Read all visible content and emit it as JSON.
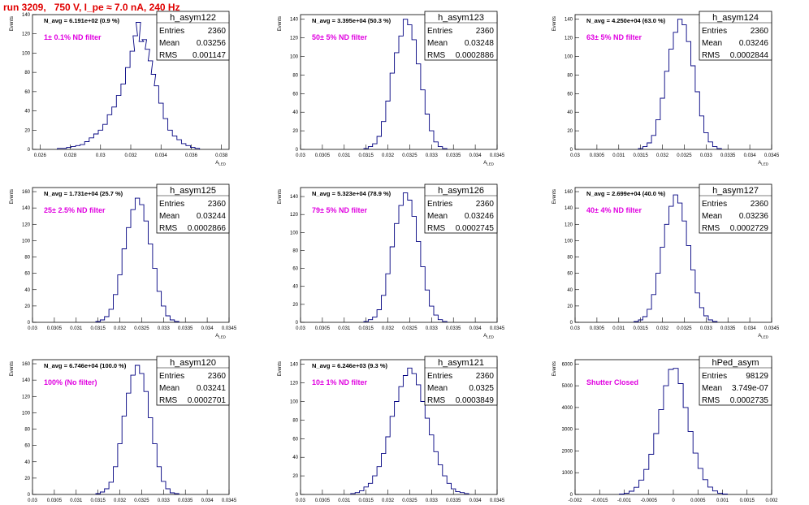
{
  "page_title": "run 3209,   750 V, I_pe ≈ 7.0 nA, 240 Hz",
  "chart_data": [
    {
      "type": "histogram",
      "stat_name": "h_asym122",
      "entries": "2360",
      "mean": "0.03256",
      "rms": "0.001147",
      "annotation": "N_avg = 6.191e+02 (0.9 %)",
      "filter_label": "1± 0.1% ND filter",
      "ylabel": "Events",
      "xlabel": "A_LED",
      "xlim": [
        0.0255,
        0.0385
      ],
      "ylim": [
        0,
        140
      ],
      "xticks": [
        0.026,
        0.028,
        0.03,
        0.032,
        0.034,
        0.036,
        0.038
      ],
      "xtick_labels": [
        "0.026",
        "0.028",
        "0.03",
        "0.032",
        "0.034",
        "0.036",
        "0.038"
      ],
      "yticks": [
        0,
        20,
        40,
        60,
        80,
        100,
        120,
        140
      ],
      "ytick_labels": [
        "0",
        "20",
        "40",
        "60",
        "80",
        "100",
        "120",
        "140"
      ],
      "x": [
        0.0273,
        0.0276,
        0.0279,
        0.0282,
        0.0285,
        0.0288,
        0.0291,
        0.0294,
        0.0297,
        0.03,
        0.0303,
        0.0306,
        0.0309,
        0.0312,
        0.0315,
        0.0318,
        0.0321,
        0.0323,
        0.0325,
        0.0327,
        0.0329,
        0.0331,
        0.0333,
        0.0335,
        0.0337,
        0.034,
        0.0343,
        0.0346,
        0.0349,
        0.0352,
        0.0355,
        0.0358,
        0.0361,
        0.0364
      ],
      "values": [
        1,
        1,
        2,
        3,
        4,
        5,
        8,
        12,
        16,
        20,
        26,
        36,
        44,
        56,
        68,
        85,
        102,
        118,
        132,
        112,
        114,
        104,
        92,
        78,
        66,
        48,
        32,
        20,
        14,
        10,
        6,
        4,
        2,
        1
      ]
    },
    {
      "type": "histogram",
      "stat_name": "h_asym123",
      "entries": "2360",
      "mean": "0.03248",
      "rms": "0.0002886",
      "annotation": "N_avg = 3.395e+04 (50.3 %)",
      "filter_label": "50± 5% ND filter",
      "ylabel": "Events",
      "xlabel": "A_LED",
      "xlim": [
        0.03,
        0.0345
      ],
      "ylim": [
        0,
        145
      ],
      "xticks": [
        0.03,
        0.0305,
        0.031,
        0.0315,
        0.032,
        0.0325,
        0.033,
        0.0335,
        0.034,
        0.0345
      ],
      "xtick_labels": [
        "0.03",
        "0.0305",
        "0.031",
        "0.0315",
        "0.032",
        "0.0325",
        "0.033",
        "0.0335",
        "0.034",
        "0.0345"
      ],
      "yticks": [
        0,
        20,
        40,
        60,
        80,
        100,
        120,
        140
      ],
      "ytick_labels": [
        "0",
        "20",
        "40",
        "60",
        "80",
        "100",
        "120",
        "140"
      ],
      "x": [
        0.0315,
        0.0316,
        0.0317,
        0.0318,
        0.0319,
        0.032,
        0.0321,
        0.0322,
        0.0323,
        0.0324,
        0.0325,
        0.0326,
        0.0327,
        0.0328,
        0.0329,
        0.033,
        0.0331,
        0.0332,
        0.0333
      ],
      "values": [
        1,
        3,
        6,
        14,
        30,
        52,
        82,
        104,
        122,
        140,
        134,
        118,
        92,
        64,
        38,
        20,
        8,
        3,
        1
      ]
    },
    {
      "type": "histogram",
      "stat_name": "h_asym124",
      "entries": "2360",
      "mean": "0.03246",
      "rms": "0.0002844",
      "annotation": "N_avg = 4.250e+04 (63.0 %)",
      "filter_label": "63± 5% ND filter",
      "ylabel": "Events",
      "xlabel": "A_LED",
      "xlim": [
        0.03,
        0.0345
      ],
      "ylim": [
        0,
        145
      ],
      "xticks": [
        0.03,
        0.0305,
        0.031,
        0.0315,
        0.032,
        0.0325,
        0.033,
        0.0335,
        0.034,
        0.0345
      ],
      "xtick_labels": [
        "0.03",
        "0.0305",
        "0.031",
        "0.0315",
        "0.032",
        "0.0325",
        "0.033",
        "0.0335",
        "0.034",
        "0.0345"
      ],
      "yticks": [
        0,
        20,
        40,
        60,
        80,
        100,
        120,
        140
      ],
      "ytick_labels": [
        "0",
        "20",
        "40",
        "60",
        "80",
        "100",
        "120",
        "140"
      ],
      "x": [
        0.0315,
        0.0316,
        0.0317,
        0.0318,
        0.0319,
        0.032,
        0.0321,
        0.0322,
        0.0323,
        0.0324,
        0.0325,
        0.0326,
        0.0327,
        0.0328,
        0.0329,
        0.033,
        0.0331,
        0.0332,
        0.0333
      ],
      "values": [
        1,
        3,
        7,
        15,
        32,
        55,
        84,
        108,
        126,
        140,
        134,
        116,
        90,
        62,
        36,
        18,
        8,
        3,
        1
      ]
    },
    {
      "type": "histogram",
      "stat_name": "h_asym125",
      "entries": "2360",
      "mean": "0.03244",
      "rms": "0.0002866",
      "annotation": "N_avg = 1.731e+04 (25.7 %)",
      "filter_label": "25± 2.5% ND filter",
      "ylabel": "Events",
      "xlabel": "A_LED",
      "xlim": [
        0.03,
        0.0345
      ],
      "ylim": [
        0,
        165
      ],
      "xticks": [
        0.03,
        0.0305,
        0.031,
        0.0315,
        0.032,
        0.0325,
        0.033,
        0.0335,
        0.034,
        0.0345
      ],
      "xtick_labels": [
        "0.03",
        "0.0305",
        "0.031",
        "0.0315",
        "0.032",
        "0.0325",
        "0.033",
        "0.0335",
        "0.034",
        "0.0345"
      ],
      "yticks": [
        0,
        20,
        40,
        60,
        80,
        100,
        120,
        140,
        160
      ],
      "ytick_labels": [
        "0",
        "20",
        "40",
        "60",
        "80",
        "100",
        "120",
        "140",
        "160"
      ],
      "x": [
        0.0315,
        0.0316,
        0.0317,
        0.0318,
        0.0319,
        0.032,
        0.0321,
        0.0322,
        0.0323,
        0.0324,
        0.0325,
        0.0326,
        0.0327,
        0.0328,
        0.0329,
        0.033,
        0.0331,
        0.0332,
        0.0333
      ],
      "values": [
        1,
        3,
        7,
        16,
        34,
        58,
        90,
        116,
        138,
        152,
        144,
        124,
        96,
        66,
        38,
        20,
        8,
        3,
        1
      ]
    },
    {
      "type": "histogram",
      "stat_name": "h_asym126",
      "entries": "2360",
      "mean": "0.03246",
      "rms": "0.0002745",
      "annotation": "N_avg = 5.323e+04 (78.9 %)",
      "filter_label": "79± 5% ND filter",
      "ylabel": "Events",
      "xlabel": "A_LED",
      "xlim": [
        0.03,
        0.0345
      ],
      "ylim": [
        0,
        150
      ],
      "xticks": [
        0.03,
        0.0305,
        0.031,
        0.0315,
        0.032,
        0.0325,
        0.033,
        0.0335,
        0.034,
        0.0345
      ],
      "xtick_labels": [
        "0.03",
        "0.0305",
        "0.031",
        "0.0315",
        "0.032",
        "0.0325",
        "0.033",
        "0.0335",
        "0.034",
        "0.0345"
      ],
      "yticks": [
        0,
        20,
        40,
        60,
        80,
        100,
        120,
        140
      ],
      "ytick_labels": [
        "0",
        "20",
        "40",
        "60",
        "80",
        "100",
        "120",
        "140"
      ],
      "x": [
        0.0315,
        0.0316,
        0.0317,
        0.0318,
        0.0319,
        0.032,
        0.0321,
        0.0322,
        0.0323,
        0.0324,
        0.0325,
        0.0326,
        0.0327,
        0.0328,
        0.0329,
        0.033,
        0.0331,
        0.0332,
        0.0333
      ],
      "values": [
        1,
        3,
        6,
        14,
        30,
        54,
        84,
        110,
        130,
        144,
        136,
        118,
        90,
        62,
        36,
        18,
        8,
        3,
        1
      ]
    },
    {
      "type": "histogram",
      "stat_name": "h_asym127",
      "entries": "2360",
      "mean": "0.03236",
      "rms": "0.0002729",
      "annotation": "N_avg = 2.699e+04 (40.0 %)",
      "filter_label": "40± 4% ND filter",
      "ylabel": "Events",
      "xlabel": "A_LED",
      "xlim": [
        0.03,
        0.0345
      ],
      "ylim": [
        0,
        165
      ],
      "xticks": [
        0.03,
        0.0305,
        0.031,
        0.0315,
        0.032,
        0.0325,
        0.033,
        0.0335,
        0.034,
        0.0345
      ],
      "xtick_labels": [
        "0.03",
        "0.0305",
        "0.031",
        "0.0315",
        "0.032",
        "0.0325",
        "0.033",
        "0.0335",
        "0.034",
        "0.0345"
      ],
      "yticks": [
        0,
        20,
        40,
        60,
        80,
        100,
        120,
        140,
        160
      ],
      "ytick_labels": [
        "0",
        "20",
        "40",
        "60",
        "80",
        "100",
        "120",
        "140",
        "160"
      ],
      "x": [
        0.0314,
        0.0315,
        0.0316,
        0.0317,
        0.0318,
        0.0319,
        0.032,
        0.0321,
        0.0322,
        0.0323,
        0.0324,
        0.0325,
        0.0326,
        0.0327,
        0.0328,
        0.0329,
        0.033,
        0.0331,
        0.0332
      ],
      "values": [
        1,
        3,
        7,
        16,
        34,
        60,
        92,
        120,
        142,
        156,
        146,
        124,
        94,
        64,
        36,
        18,
        8,
        3,
        1
      ]
    },
    {
      "type": "histogram",
      "stat_name": "h_asym120",
      "entries": "2360",
      "mean": "0.03241",
      "rms": "0.0002701",
      "annotation": "N_avg = 6.746e+04 (100.0 %)",
      "filter_label": "100% (No filter)",
      "ylabel": "Events",
      "xlabel": "A_LED",
      "xlim": [
        0.03,
        0.0345
      ],
      "ylim": [
        0,
        165
      ],
      "xticks": [
        0.03,
        0.0305,
        0.031,
        0.0315,
        0.032,
        0.0325,
        0.033,
        0.0335,
        0.034,
        0.0345
      ],
      "xtick_labels": [
        "0.03",
        "0.0305",
        "0.031",
        "0.0315",
        "0.032",
        "0.0325",
        "0.033",
        "0.0335",
        "0.034",
        "0.0345"
      ],
      "yticks": [
        0,
        20,
        40,
        60,
        80,
        100,
        120,
        140,
        160
      ],
      "ytick_labels": [
        "0",
        "20",
        "40",
        "60",
        "80",
        "100",
        "120",
        "140",
        "160"
      ],
      "x": [
        0.0315,
        0.0316,
        0.0317,
        0.0318,
        0.0319,
        0.032,
        0.0321,
        0.0322,
        0.0323,
        0.0324,
        0.0325,
        0.0326,
        0.0327,
        0.0328,
        0.0329,
        0.033,
        0.0331,
        0.0332,
        0.0333
      ],
      "values": [
        1,
        3,
        7,
        15,
        34,
        62,
        96,
        124,
        146,
        158,
        148,
        126,
        94,
        62,
        34,
        16,
        7,
        2,
        1
      ]
    },
    {
      "type": "histogram",
      "stat_name": "h_asym121",
      "entries": "2360",
      "mean": "0.0325",
      "rms": "0.0003849",
      "annotation": "N_avg = 6.246e+03 (9.3 %)",
      "filter_label": "10± 1% ND filter",
      "ylabel": "Events",
      "xlabel": "A_LED",
      "xlim": [
        0.03,
        0.0345
      ],
      "ylim": [
        0,
        145
      ],
      "xticks": [
        0.03,
        0.0305,
        0.031,
        0.0315,
        0.032,
        0.0325,
        0.033,
        0.0335,
        0.034,
        0.0345
      ],
      "xtick_labels": [
        "0.03",
        "0.0305",
        "0.031",
        "0.0315",
        "0.032",
        "0.0325",
        "0.033",
        "0.0335",
        "0.034",
        "0.0345"
      ],
      "yticks": [
        0,
        20,
        40,
        60,
        80,
        100,
        120,
        140
      ],
      "ytick_labels": [
        "0",
        "20",
        "40",
        "60",
        "80",
        "100",
        "120",
        "140"
      ],
      "x": [
        0.0312,
        0.0313,
        0.0314,
        0.0315,
        0.0316,
        0.0317,
        0.0318,
        0.0319,
        0.032,
        0.0321,
        0.0322,
        0.0323,
        0.0324,
        0.0325,
        0.0326,
        0.0327,
        0.0328,
        0.0329,
        0.033,
        0.0331,
        0.0332,
        0.0333,
        0.0334,
        0.0335,
        0.0336,
        0.0337,
        0.0338
      ],
      "values": [
        1,
        2,
        4,
        8,
        12,
        20,
        30,
        44,
        62,
        84,
        100,
        116,
        128,
        136,
        130,
        118,
        100,
        82,
        64,
        46,
        32,
        20,
        12,
        6,
        3,
        2,
        1
      ]
    },
    {
      "type": "histogram",
      "stat_name": "hPed_asym",
      "entries": "98129",
      "mean": "3.749e-07",
      "rms": "0.0002735",
      "annotation": "",
      "filter_label": "Shutter Closed",
      "ylabel": "Events",
      "xlabel": "",
      "xlim": [
        -0.002,
        0.002
      ],
      "ylim": [
        0,
        6200
      ],
      "xticks": [
        -0.002,
        -0.0015,
        -0.001,
        -0.0005,
        0,
        0.0005,
        0.001,
        0.0015,
        0.002
      ],
      "xtick_labels": [
        "-0.002",
        "-0.0015",
        "-0.001",
        "-0.0005",
        "0",
        "0.0005",
        "0.001",
        "0.0015",
        "0.002"
      ],
      "yticks": [
        0,
        1000,
        2000,
        3000,
        4000,
        5000,
        6000
      ],
      "ytick_labels": [
        "0",
        "1000",
        "2000",
        "3000",
        "4000",
        "5000",
        "6000"
      ],
      "x": [
        -0.00105,
        -0.00095,
        -0.00085,
        -0.00075,
        -0.00065,
        -0.00055,
        -0.00045,
        -0.00035,
        -0.00025,
        -0.00015,
        -5e-05,
        5e-05,
        0.00015,
        0.00025,
        0.00035,
        0.00045,
        0.00055,
        0.00065,
        0.00075,
        0.00085,
        0.00095,
        0.00105
      ],
      "values": [
        20,
        60,
        150,
        330,
        660,
        1150,
        1850,
        2800,
        3900,
        5000,
        5750,
        5800,
        5100,
        4000,
        2900,
        1900,
        1200,
        680,
        340,
        160,
        60,
        20
      ]
    }
  ]
}
